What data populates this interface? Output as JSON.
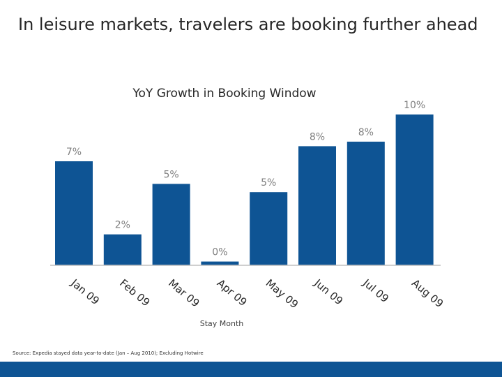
{
  "slide": {
    "title": "In leisure markets, travelers are booking further ahead",
    "source": "Source: Expedia stayed data year-to-date (Jan – Aug 2010); Excluding Hotwire"
  },
  "chart_data": {
    "type": "bar",
    "title": "YoY Growth in Booking Window",
    "xlabel": "Stay Month",
    "ylabel": "",
    "categories": [
      "Jan 09",
      "Feb 09",
      "Mar 09",
      "Apr 09",
      "May 09",
      "Jun 09",
      "Jul 09",
      "Aug 09"
    ],
    "values": [
      7,
      2,
      5,
      0,
      5,
      8,
      8,
      10
    ],
    "value_labels": [
      "7%",
      "2%",
      "5%",
      "0%",
      "5%",
      "8%",
      "8%",
      "10%"
    ],
    "value_heights": [
      0.69,
      0.205,
      0.54,
      0.025,
      0.485,
      0.79,
      0.82,
      1.0
    ],
    "ylim": [
      0,
      10
    ],
    "grid": false,
    "legend": "none",
    "bar_color": "#0e5494",
    "axis_color": "#bfbfbf"
  },
  "colors": {
    "accent": "#0e5494",
    "label": "#7f7f7f",
    "text": "#262626"
  }
}
